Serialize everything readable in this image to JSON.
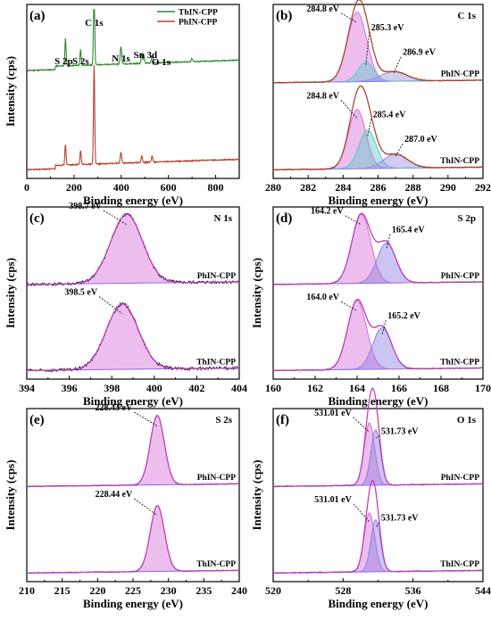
{
  "chart_data": [
    {
      "panel": "(a)",
      "type": "line",
      "title": "",
      "xlabel": "Binding energy (eV)",
      "ylabel": "Intensity (cps)",
      "xlim": [
        0,
        900
      ],
      "xticks": [
        "0",
        "200",
        "400",
        "600",
        "800"
      ],
      "legend": {
        "placement": "top-right",
        "entries": [
          {
            "label": "ThIN-CPP",
            "color": "#2e8b2e"
          },
          {
            "label": "PhIN-CPP",
            "color": "#b5432e"
          }
        ]
      },
      "peak_labels": [
        {
          "text": "C 1s",
          "x": 285
        },
        {
          "text": "S 2p",
          "x": 164
        },
        {
          "text": "S 2s",
          "x": 228
        },
        {
          "text": "N 1s",
          "x": 399
        },
        {
          "text": "Sn 3d",
          "x": 487
        },
        {
          "text": "O 1s",
          "x": 531
        }
      ],
      "series": [
        {
          "name": "ThIN-CPP",
          "color": "#2e8b2e",
          "baseline": 0.62,
          "peaks": [
            {
              "x": 164,
              "h": 0.16,
              "w": 2.5
            },
            {
              "x": 228,
              "h": 0.09,
              "w": 2.5
            },
            {
              "x": 285,
              "h": 0.48,
              "w": 2.5
            },
            {
              "x": 399,
              "h": 0.1,
              "w": 3
            },
            {
              "x": 487,
              "h": 0.06,
              "w": 2.5
            },
            {
              "x": 496,
              "h": 0.05,
              "w": 2.5
            },
            {
              "x": 531,
              "h": 0.04,
              "w": 3
            },
            {
              "x": 700,
              "h": 0.015,
              "w": 4
            }
          ]
        },
        {
          "name": "PhIN-CPP",
          "color": "#b5432e",
          "baseline": 0.05,
          "peaks": [
            {
              "x": 164,
              "h": 0.12,
              "w": 2.5
            },
            {
              "x": 228,
              "h": 0.08,
              "w": 2.5
            },
            {
              "x": 285,
              "h": 0.57,
              "w": 2.5
            },
            {
              "x": 399,
              "h": 0.06,
              "w": 3
            },
            {
              "x": 487,
              "h": 0.04,
              "w": 2.5
            },
            {
              "x": 531,
              "h": 0.035,
              "w": 3
            }
          ]
        }
      ]
    },
    {
      "panel": "(b)",
      "type": "line",
      "title": "C 1s",
      "xlabel": "Binding energy (eV)",
      "ylabel": "",
      "xlim": [
        280,
        292
      ],
      "xticks": [
        "280",
        "282",
        "284",
        "286",
        "288",
        "290",
        "292"
      ],
      "stacks": [
        {
          "name": "PhIN-CPP",
          "offset": 0.54,
          "scale": 0.4,
          "components": [
            {
              "x": 284.8,
              "h": 1.0,
              "w": 0.55,
              "color": "#d66ed6"
            },
            {
              "x": 285.3,
              "h": 0.28,
              "w": 0.45,
              "color": "#5fc9c9"
            },
            {
              "x": 286.9,
              "h": 0.14,
              "w": 0.75,
              "color": "#9b8fe0"
            }
          ],
          "annotations": [
            {
              "text": "284.8 eV",
              "x": 284.8
            },
            {
              "text": "285.3 eV",
              "x": 285.3
            },
            {
              "text": "286.9 eV",
              "x": 286.9
            }
          ]
        },
        {
          "name": "ThIN-CPP",
          "offset": 0.04,
          "scale": 0.4,
          "components": [
            {
              "x": 284.8,
              "h": 0.85,
              "w": 0.5,
              "color": "#d66ed6"
            },
            {
              "x": 285.4,
              "h": 0.55,
              "w": 0.5,
              "color": "#5fc9c9"
            },
            {
              "x": 287.0,
              "h": 0.2,
              "w": 0.7,
              "color": "#9b8fe0"
            }
          ],
          "annotations": [
            {
              "text": "284.8 eV",
              "x": 284.8
            },
            {
              "text": "285.4 eV",
              "x": 285.4
            },
            {
              "text": "287.0 eV",
              "x": 287.0
            }
          ]
        }
      ]
    },
    {
      "panel": "(c)",
      "type": "line",
      "title": "N 1s",
      "xlabel": "Binding energy (eV)",
      "ylabel": "Intensity (cps)",
      "xlim": [
        394,
        404
      ],
      "xticks": [
        "394",
        "396",
        "398",
        "400",
        "402",
        "404"
      ],
      "stacks": [
        {
          "name": "PhIN-CPP",
          "offset": 0.54,
          "scale": 0.4,
          "components": [
            {
              "x": 398.7,
              "h": 1.0,
              "w": 0.75,
              "color": "#d66ed6"
            }
          ],
          "annotations": [
            {
              "text": "398.7 eV",
              "x": 398.7
            }
          ]
        },
        {
          "name": "ThIN-CPP",
          "offset": 0.04,
          "scale": 0.4,
          "components": [
            {
              "x": 398.5,
              "h": 0.95,
              "w": 0.75,
              "color": "#d66ed6"
            }
          ],
          "annotations": [
            {
              "text": "398.5 eV",
              "x": 398.5
            }
          ]
        }
      ]
    },
    {
      "panel": "(d)",
      "type": "line",
      "title": "S 2p",
      "xlabel": "Binding energy (eV)",
      "ylabel": "Intensity (cps)",
      "xlim": [
        160,
        170
      ],
      "xticks": [
        "160",
        "162",
        "164",
        "166",
        "168",
        "170"
      ],
      "stacks": [
        {
          "name": "PhIN-CPP",
          "offset": 0.54,
          "scale": 0.4,
          "components": [
            {
              "x": 164.2,
              "h": 1.0,
              "w": 0.45,
              "color": "#d66ed6"
            },
            {
              "x": 165.4,
              "h": 0.58,
              "w": 0.45,
              "color": "#8f7fe0"
            }
          ],
          "annotations": [
            {
              "text": "164.2 eV",
              "x": 164.2
            },
            {
              "text": "165.4 eV",
              "x": 165.4
            }
          ]
        },
        {
          "name": "ThIN-CPP",
          "offset": 0.04,
          "scale": 0.4,
          "components": [
            {
              "x": 164.0,
              "h": 1.0,
              "w": 0.45,
              "color": "#d66ed6"
            },
            {
              "x": 165.2,
              "h": 0.6,
              "w": 0.45,
              "color": "#8f7fe0"
            }
          ],
          "annotations": [
            {
              "text": "164.0 eV",
              "x": 164.0
            },
            {
              "text": "165.2 eV",
              "x": 165.2
            }
          ]
        }
      ]
    },
    {
      "panel": "(e)",
      "type": "line",
      "title": "S 2s",
      "xlabel": "Binding energy (eV)",
      "ylabel": "Intensity (cps)",
      "xlim": [
        210,
        240
      ],
      "xticks": [
        "210",
        "215",
        "220",
        "225",
        "230",
        "235",
        "240"
      ],
      "stacks": [
        {
          "name": "PhIN-CPP",
          "offset": 0.54,
          "scale": 0.4,
          "components": [
            {
              "x": 228.43,
              "h": 1.0,
              "w": 1.0,
              "color": "#d66ed6"
            }
          ],
          "annotations": [
            {
              "text": "228.43 eV",
              "x": 228.43
            }
          ]
        },
        {
          "name": "ThIN-CPP",
          "offset": 0.04,
          "scale": 0.4,
          "components": [
            {
              "x": 228.44,
              "h": 0.95,
              "w": 1.0,
              "color": "#d66ed6"
            }
          ],
          "annotations": [
            {
              "text": "228.44 eV",
              "x": 228.44
            }
          ]
        }
      ]
    },
    {
      "panel": "(f)",
      "type": "line",
      "title": "O 1s",
      "xlabel": "Binding energy (eV)",
      "ylabel": "Intensity (cps)",
      "xlim": [
        520,
        544
      ],
      "xticks": [
        "520",
        "528",
        "536",
        "544"
      ],
      "stacks": [
        {
          "name": "PhIN-CPP",
          "offset": 0.54,
          "scale": 0.4,
          "components": [
            {
              "x": 531.01,
              "h": 0.9,
              "w": 0.6,
              "color": "#d66ed6"
            },
            {
              "x": 531.73,
              "h": 0.8,
              "w": 0.55,
              "color": "#8f7fe0"
            }
          ],
          "annotations": [
            {
              "text": "531.01 eV",
              "x": 531.01
            },
            {
              "text": "531.73 eV",
              "x": 531.73
            }
          ]
        },
        {
          "name": "ThIN-CPP",
          "offset": 0.04,
          "scale": 0.4,
          "components": [
            {
              "x": 531.01,
              "h": 0.85,
              "w": 0.6,
              "color": "#d66ed6"
            },
            {
              "x": 531.73,
              "h": 0.75,
              "w": 0.55,
              "color": "#8f7fe0"
            }
          ],
          "annotations": [
            {
              "text": "531.01 eV",
              "x": 531.01
            },
            {
              "text": "531.73 eV",
              "x": 531.73
            }
          ]
        }
      ]
    }
  ]
}
